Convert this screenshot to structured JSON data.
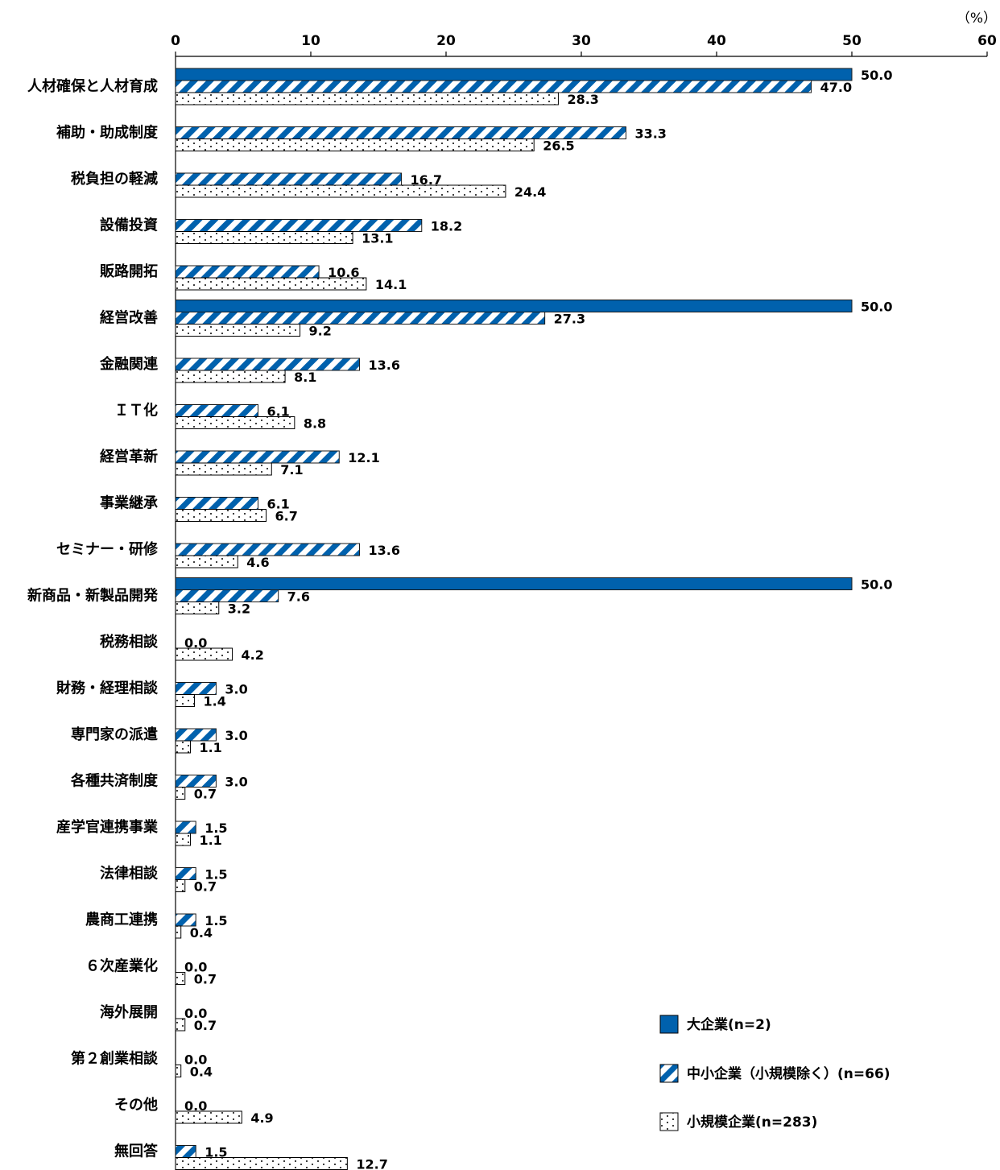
{
  "chart_data": {
    "type": "bar",
    "orientation": "horizontal",
    "unit": "（%）",
    "xlim": [
      0,
      60
    ],
    "xticks": [
      0,
      10,
      20,
      30,
      40,
      50,
      60
    ],
    "categories": [
      "人材確保と人材育成",
      "補助・助成制度",
      "税負担の軽減",
      "設備投資",
      "販路開拓",
      "経営改善",
      "金融関連",
      "ＩＴ化",
      "経営革新",
      "事業継承",
      "セミナー・研修",
      "新商品・新製品開発",
      "税務相談",
      "財務・経理相談",
      "専門家の派遣",
      "各種共済制度",
      "産学官連携事業",
      "法律相談",
      "農商工連携",
      "６次産業化",
      "海外展開",
      "第２創業相談",
      "その他",
      "無回答"
    ],
    "series": [
      {
        "name": "大企業(n=2)",
        "values": [
          50.0,
          0,
          0,
          0,
          0,
          50.0,
          0,
          0,
          0,
          0,
          0,
          50.0,
          0,
          0,
          0,
          0,
          0,
          0,
          0,
          0,
          0,
          0,
          0,
          0
        ],
        "labels": [
          "50.0",
          "",
          "",
          "",
          "",
          "50.0",
          "",
          "",
          "",
          "",
          "",
          "50.0",
          "",
          "",
          "",
          "",
          "",
          "",
          "",
          "",
          "",
          "",
          "",
          ""
        ],
        "color": "#0061ad",
        "pattern": "solid"
      },
      {
        "name": "中小企業（小規模除く）(n=66)",
        "values": [
          47.0,
          33.3,
          16.7,
          18.2,
          10.6,
          27.3,
          13.6,
          6.1,
          12.1,
          6.1,
          13.6,
          7.6,
          0.0,
          3.0,
          3.0,
          3.0,
          1.5,
          1.5,
          1.5,
          0.0,
          0.0,
          0.0,
          0.0,
          1.5
        ],
        "labels": [
          "47.0",
          "33.3",
          "16.7",
          "18.2",
          "10.6",
          "27.3",
          "13.6",
          "6.1",
          "12.1",
          "6.1",
          "13.6",
          "7.6",
          "0.0",
          "3.0",
          "3.0",
          "3.0",
          "1.5",
          "1.5",
          "1.5",
          "0.0",
          "0.0",
          "0.0",
          "0.0",
          "1.5"
        ],
        "color": "#0061ad",
        "pattern": "diagonal"
      },
      {
        "name": "小規模企業(n=283)",
        "values": [
          28.3,
          26.5,
          24.4,
          13.1,
          14.1,
          9.2,
          8.1,
          8.8,
          7.1,
          6.7,
          4.6,
          3.2,
          4.2,
          1.4,
          1.1,
          0.7,
          1.1,
          0.7,
          0.4,
          0.7,
          0.7,
          0.4,
          4.9,
          12.7
        ],
        "labels": [
          "28.3",
          "26.5",
          "24.4",
          "13.1",
          "14.1",
          "9.2",
          "8.1",
          "8.8",
          "7.1",
          "6.7",
          "4.6",
          "3.2",
          "4.2",
          "1.4",
          "1.1",
          "0.7",
          "1.1",
          "0.7",
          "0.4",
          "0.7",
          "0.7",
          "0.4",
          "4.9",
          "12.7"
        ],
        "color": "#000000",
        "pattern": "dots"
      }
    ],
    "legend": "bottom-right",
    "grid": false
  }
}
